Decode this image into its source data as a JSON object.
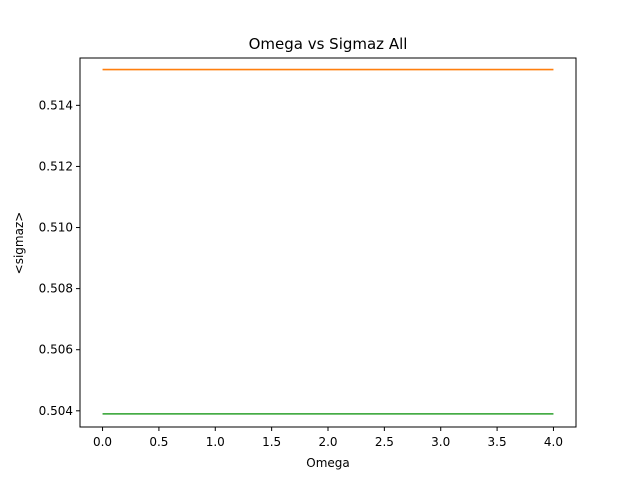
{
  "chart_data": {
    "type": "line",
    "title": "Omega vs Sigmaz All",
    "xlabel": "Omega",
    "ylabel": "<sigmaz>",
    "xlim": [
      -0.2,
      4.2
    ],
    "ylim": [
      0.50347,
      0.51555
    ],
    "xticks": [
      0.0,
      0.5,
      1.0,
      1.5,
      2.0,
      2.5,
      3.0,
      3.5,
      4.0
    ],
    "xtick_labels": [
      "0.0",
      "0.5",
      "1.0",
      "1.5",
      "2.0",
      "2.5",
      "3.0",
      "3.5",
      "4.0"
    ],
    "yticks": [
      0.504,
      0.506,
      0.508,
      0.51,
      0.512,
      0.514
    ],
    "ytick_labels": [
      "0.504",
      "0.506",
      "0.508",
      "0.510",
      "0.512",
      "0.514"
    ],
    "grid": false,
    "legend": "none",
    "series": [
      {
        "color": "#ff7f0e",
        "x": [
          0.0,
          4.0
        ],
        "y": [
          0.51517,
          0.51517
        ]
      },
      {
        "color": "#2ca02c",
        "x": [
          0.0,
          4.0
        ],
        "y": [
          0.5039,
          0.5039
        ]
      }
    ]
  }
}
